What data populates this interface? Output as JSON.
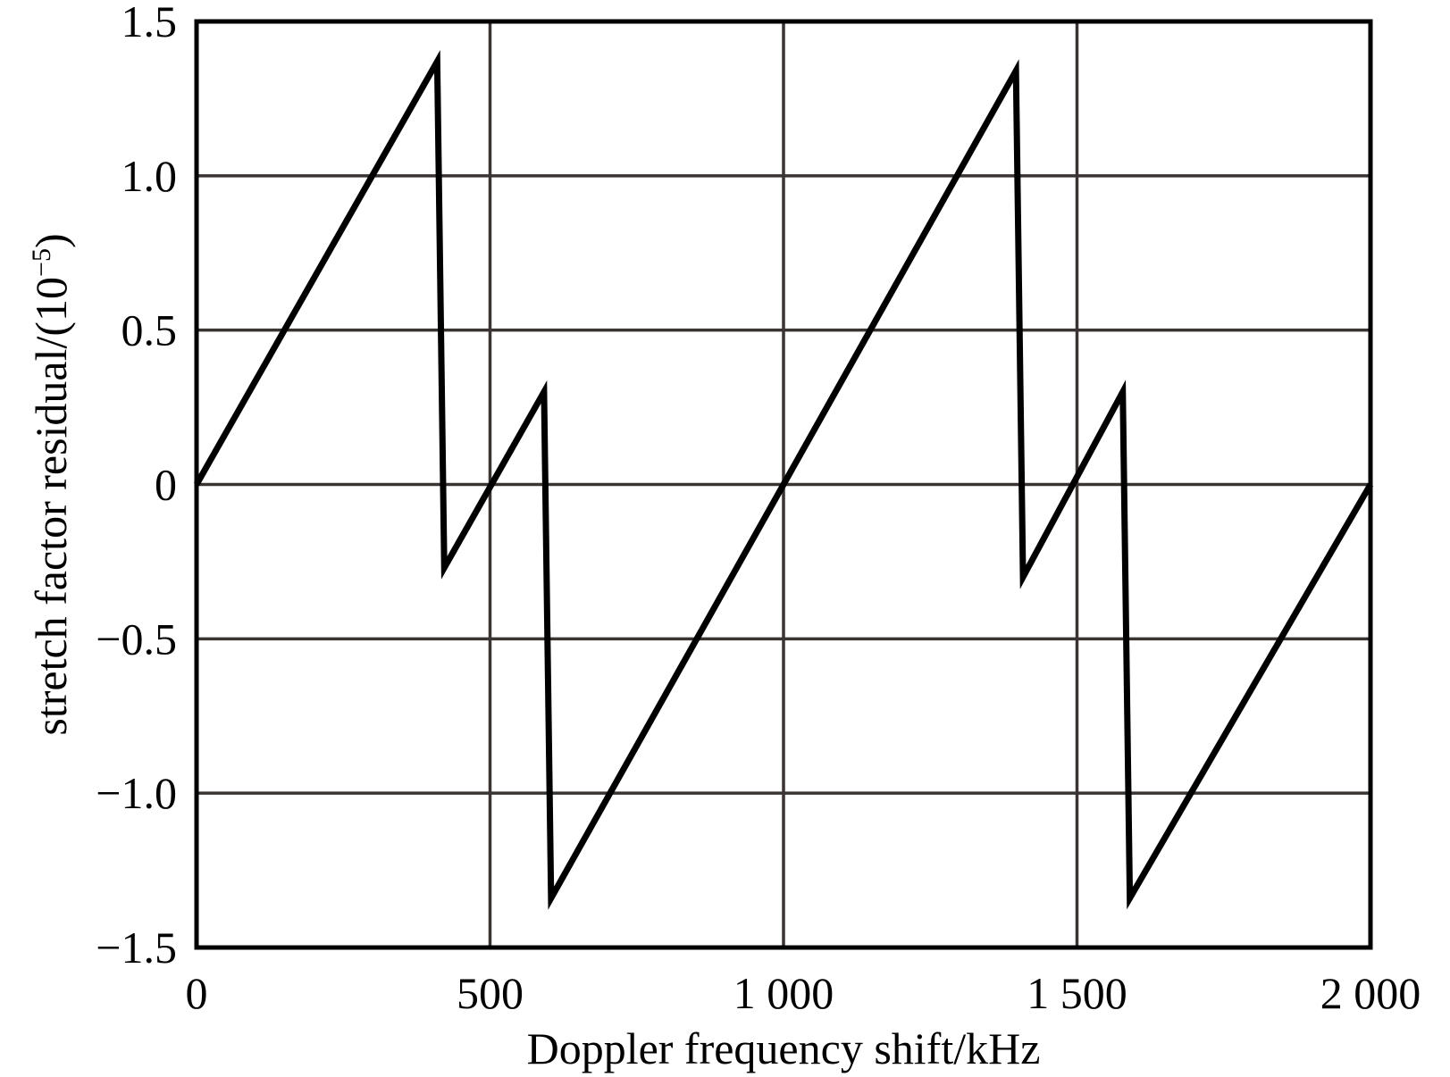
{
  "chart_data": {
    "type": "line",
    "title": "",
    "xlabel": "Doppler frequency shift/kHz",
    "ylabel": "stretch factor residual/(10",
    "ylabel_exponent": "−5",
    "ylabel_close": ")",
    "xlim": [
      0,
      2000
    ],
    "ylim": [
      -1.5,
      1.5
    ],
    "grid": true,
    "legend": "none",
    "x_ticks": [
      {
        "value": 0,
        "label": "0"
      },
      {
        "value": 500,
        "label": "500"
      },
      {
        "value": 1000,
        "label": "1 000"
      },
      {
        "value": 1500,
        "label": "1 500"
      },
      {
        "value": 2000,
        "label": "2 000"
      }
    ],
    "y_ticks": [
      {
        "value": 1.5,
        "label": "1.5"
      },
      {
        "value": 1.0,
        "label": "1.0"
      },
      {
        "value": 0.5,
        "label": "0.5"
      },
      {
        "value": 0,
        "label": "0"
      },
      {
        "value": -0.5,
        "label": "−0.5"
      },
      {
        "value": -1.0,
        "label": "−1.0"
      },
      {
        "value": -1.5,
        "label": "−1.5"
      }
    ],
    "series": [
      {
        "color": "#000000",
        "x": [
          0,
          410,
          422,
          592,
          604,
          1000,
          1396,
          1408,
          1578,
          1590,
          2000
        ],
        "y": [
          0,
          1.37,
          -0.27,
          0.3,
          -1.34,
          0,
          1.34,
          -0.3,
          0.3,
          -1.34,
          0
        ]
      }
    ]
  }
}
